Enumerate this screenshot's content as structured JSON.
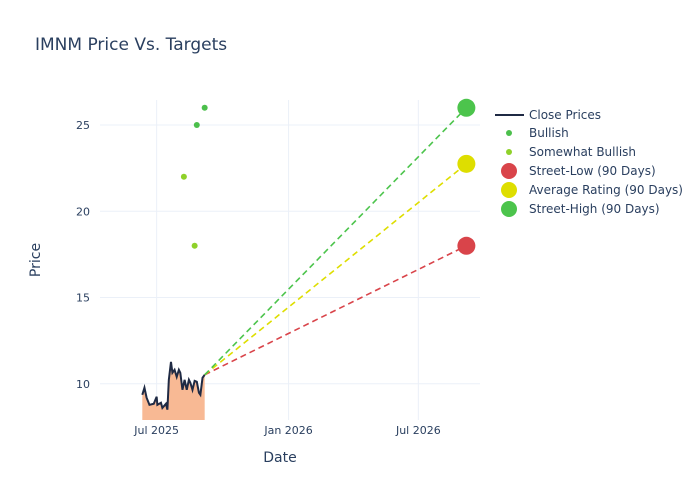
{
  "chart_data": {
    "type": "line",
    "title": "IMNM Price Vs. Targets",
    "xlabel": "Date",
    "ylabel": "Price",
    "xlim": [
      "2025-04-13",
      "2026-09-25"
    ],
    "ylim": [
      7.9,
      26.45
    ],
    "x_ticks": [
      {
        "date": "2025-07-01",
        "label": "Jul 2025"
      },
      {
        "date": "2026-01-01",
        "label": "Jan 2026"
      },
      {
        "date": "2026-07-01",
        "label": "Jul 2026"
      }
    ],
    "y_ticks": [
      10,
      15,
      20,
      25
    ],
    "grid": true,
    "legend_placement": "right",
    "series": [
      {
        "name": "Close Prices",
        "kind": "line-with-fill",
        "color": "#1f2a44",
        "fill_color": "#f8b994",
        "x": [
          "2025-06-11",
          "2025-06-14",
          "2025-06-17",
          "2025-06-21",
          "2025-06-27",
          "2025-07-01",
          "2025-07-02",
          "2025-07-07",
          "2025-07-09",
          "2025-07-14",
          "2025-07-16",
          "2025-07-18",
          "2025-07-21",
          "2025-07-23",
          "2025-07-26",
          "2025-07-29",
          "2025-08-01",
          "2025-08-03",
          "2025-08-06",
          "2025-08-09",
          "2025-08-12",
          "2025-08-15",
          "2025-08-17",
          "2025-08-20",
          "2025-08-23",
          "2025-08-26",
          "2025-08-29",
          "2025-08-31",
          "2025-09-03",
          "2025-09-06"
        ],
        "y": [
          9.36,
          9.77,
          9.19,
          8.78,
          8.84,
          9.25,
          8.78,
          8.9,
          8.6,
          8.84,
          8.5,
          10.23,
          11.27,
          10.64,
          10.81,
          10.4,
          10.81,
          10.64,
          9.65,
          10.23,
          9.65,
          10.23,
          10.06,
          9.65,
          10.17,
          10.12,
          9.48,
          9.36,
          10.35,
          10.52
        ]
      },
      {
        "name": "Bullish",
        "kind": "points",
        "color": "#4cbf4c",
        "x": [
          "2025-09-06",
          "2025-08-26"
        ],
        "y": [
          26,
          25
        ]
      },
      {
        "name": "Somewhat Bullish",
        "kind": "points",
        "color": "#8fd12a",
        "x": [
          "2025-08-08",
          "2025-08-23"
        ],
        "y": [
          22,
          18
        ]
      },
      {
        "name": "Street-Low (90 Days)",
        "kind": "target",
        "color": "#d9444a",
        "x": "2026-09-06",
        "y": 18
      },
      {
        "name": "Average Rating (90 Days)",
        "kind": "target",
        "color": "#dede00",
        "x": "2026-09-06",
        "y": 22.75
      },
      {
        "name": "Street-High (90 Days)",
        "kind": "target",
        "color": "#4cc44c",
        "x": "2026-09-06",
        "y": 26
      }
    ]
  }
}
